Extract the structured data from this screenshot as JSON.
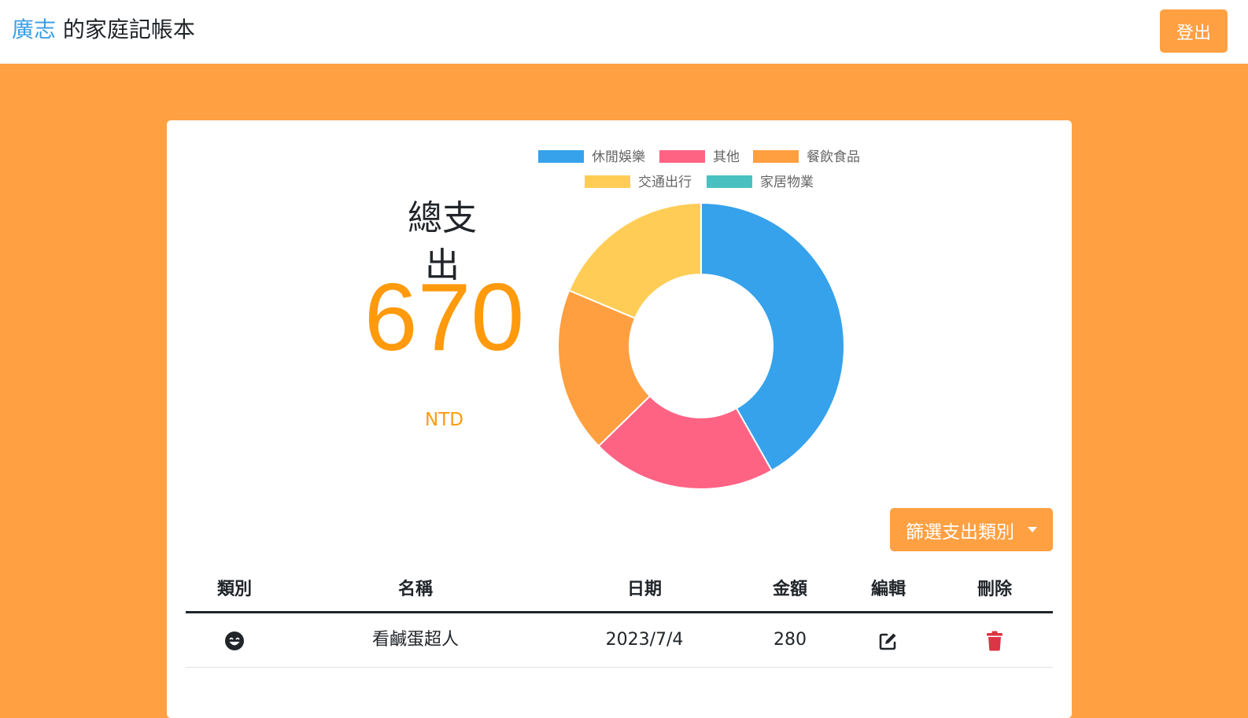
{
  "navbar": {
    "user_name": "廣志",
    "title_suffix": " 的家庭記帳本",
    "logout_label": "登出"
  },
  "summary": {
    "title": "總支出",
    "amount": "670",
    "unit": "NTD"
  },
  "filter": {
    "label": "篩選支出類別"
  },
  "table": {
    "headers": [
      "類別",
      "名稱",
      "日期",
      "金額",
      "編輯",
      "刪除"
    ],
    "rows": [
      {
        "category_icon": "grin-face-icon",
        "name": "看鹹蛋超人",
        "date": "2023/7/4",
        "amount": "280",
        "edit_icon": "edit-icon",
        "delete_icon": "trash-icon"
      }
    ]
  },
  "colors": {
    "accent": "#ffa042",
    "brand_user": "#3ba0e6",
    "amount_text": "#ff9a0d",
    "delete_icon": "#dc3545"
  },
  "chart_data": {
    "type": "pie",
    "variant": "doughnut",
    "categories": [
      "休閒娛樂",
      "其他",
      "餐飲食品",
      "交通出行",
      "家居物業"
    ],
    "values": [
      280,
      140,
      125,
      125,
      0
    ],
    "colors": [
      "#36a2eb",
      "#ff6384",
      "#ff9f40",
      "#ffcd56",
      "#4bc0c0"
    ],
    "legend_position": "top"
  }
}
